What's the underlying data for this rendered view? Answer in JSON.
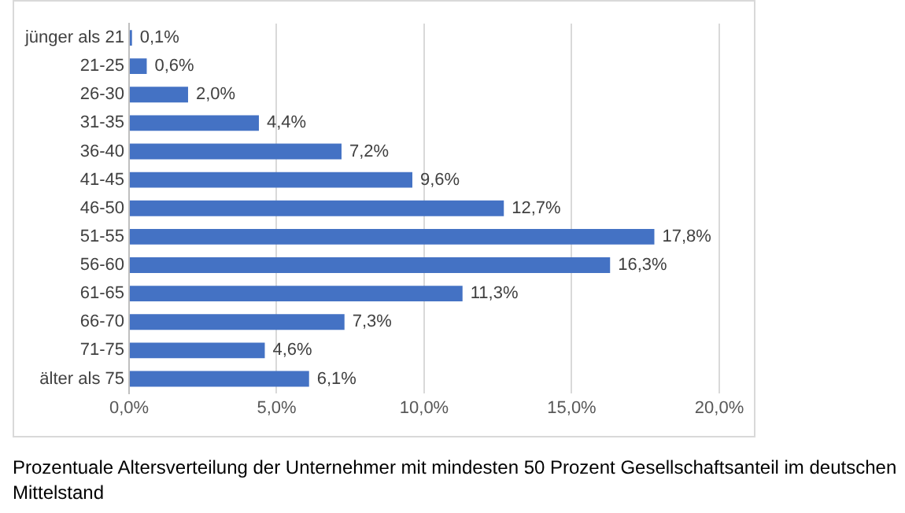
{
  "chart_data": {
    "type": "bar",
    "orientation": "horizontal",
    "categories": [
      "jünger als 21",
      "21-25",
      "26-30",
      "31-35",
      "36-40",
      "41-45",
      "46-50",
      "51-55",
      "56-60",
      "61-65",
      "66-70",
      "71-75",
      "älter als 75"
    ],
    "values": [
      0.1,
      0.6,
      2.0,
      4.4,
      7.2,
      9.6,
      12.7,
      17.8,
      16.3,
      11.3,
      7.3,
      4.6,
      6.1
    ],
    "value_labels": [
      "0,1%",
      "0,6%",
      "2,0%",
      "4,4%",
      "7,2%",
      "9,6%",
      "12,7%",
      "17,8%",
      "16,3%",
      "11,3%",
      "7,3%",
      "4,6%",
      "6,1%"
    ],
    "color": "#4472c4",
    "xlim": [
      0,
      20
    ],
    "xticks": [
      {
        "value": 0,
        "label": "0,0%"
      },
      {
        "value": 5,
        "label": "5,0%"
      },
      {
        "value": 10,
        "label": "10,0%"
      },
      {
        "value": 15,
        "label": "15,0%"
      },
      {
        "value": 20,
        "label": "20,0%"
      }
    ],
    "grid": "x",
    "legend": false,
    "annotations": [
      "Prozentuale Altersverteilung der Unternehmer mit mindesten 50 Prozent Gesellschaftsanteil im deutschen Mittelstand"
    ]
  }
}
